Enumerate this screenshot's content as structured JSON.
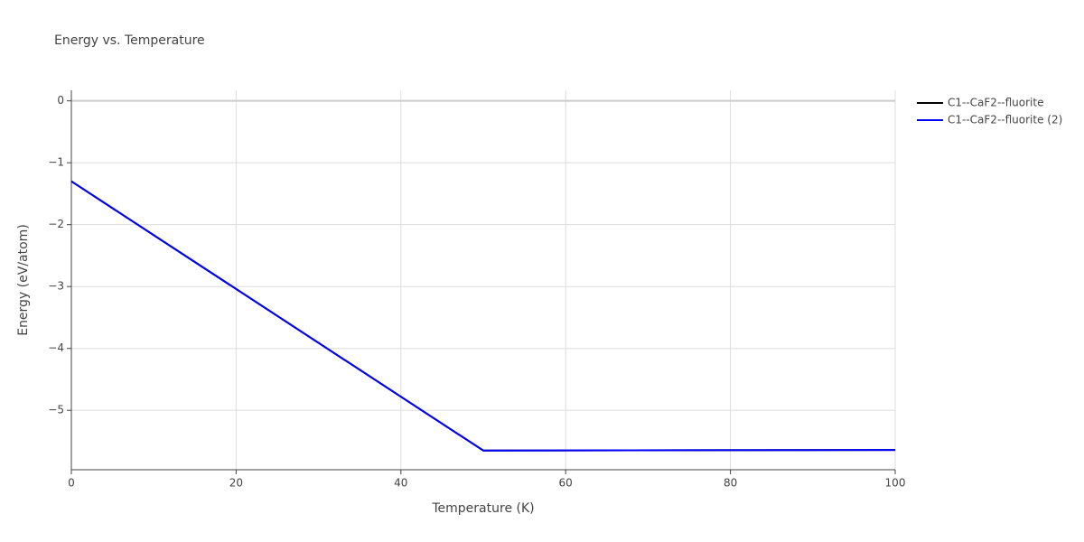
{
  "chart_data": {
    "type": "line",
    "title": "Energy vs. Temperature",
    "x_label": "Temperature (K)",
    "y_label": "Energy (eV/atom)",
    "x": [
      0,
      50,
      100
    ],
    "series": [
      {
        "name": "C1--CaF2--fluorite",
        "color": "#000000",
        "values": [
          -1.3,
          -5.65,
          -5.64
        ]
      },
      {
        "name": "C1--CaF2--fluorite (2)",
        "color": "#0000ff",
        "values": [
          -1.3,
          -5.65,
          -5.64
        ]
      }
    ],
    "xlim": [
      0,
      100
    ],
    "xticks": [
      0,
      20,
      40,
      60,
      80,
      100
    ],
    "ylim": [
      -5.96,
      0.17
    ],
    "yticks": [
      0,
      {
        "value": -1,
        "label": "−1"
      },
      {
        "value": -2,
        "label": "−2"
      },
      {
        "value": -3,
        "label": "−3"
      },
      {
        "value": -4,
        "label": "−4"
      },
      {
        "value": -5,
        "label": "−5"
      }
    ],
    "grid": true,
    "legend": "right"
  }
}
